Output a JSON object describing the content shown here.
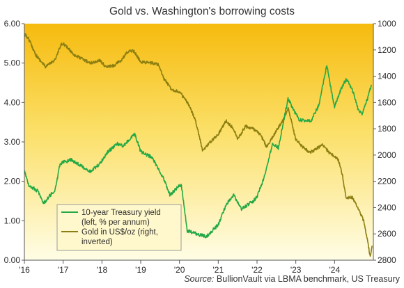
{
  "chart_data": {
    "type": "line",
    "title": "Gold vs. Washington's  borrowing costs",
    "source_label": "Source:",
    "source_text": "BullionVault via LBMA benchmark, US Treasury",
    "x_axis": {
      "range": [
        2016.0,
        2025.0
      ],
      "tick_values": [
        2016,
        2017,
        2018,
        2019,
        2020,
        2021,
        2022,
        2023,
        2024
      ],
      "tick_labels": [
        "'16",
        "'17",
        "'18",
        "'19",
        "'20",
        "'21",
        "'22",
        "'23",
        "'24"
      ]
    },
    "y_left": {
      "range": [
        0,
        6
      ],
      "ticks": [
        "0.00",
        "1.00",
        "2.00",
        "3.00",
        "4.00",
        "5.00",
        "6.00"
      ]
    },
    "y_right": {
      "range": [
        1000,
        2800
      ],
      "inverted": true,
      "ticks": [
        "1000",
        "1200",
        "1400",
        "1600",
        "1800",
        "2000",
        "2200",
        "2400",
        "2600",
        "2800"
      ]
    },
    "grid": false,
    "legend_position": "bottom-left",
    "series": [
      {
        "name": "10-year Treasury yield",
        "legend_lines": [
          "10-year Treasury yield",
          "(left, % per annum)"
        ],
        "axis": "left",
        "color": "#22a845",
        "x": [
          2016.0,
          2016.12,
          2016.35,
          2016.5,
          2016.8,
          2016.92,
          2017.2,
          2017.7,
          2017.95,
          2018.15,
          2018.4,
          2018.55,
          2018.85,
          2019.0,
          2019.3,
          2019.6,
          2019.75,
          2019.95,
          2020.05,
          2020.2,
          2020.5,
          2020.7,
          2021.0,
          2021.2,
          2021.4,
          2021.6,
          2021.9,
          2022.0,
          2022.2,
          2022.4,
          2022.55,
          2022.8,
          2022.95,
          2023.1,
          2023.4,
          2023.6,
          2023.8,
          2023.95,
          2024.0,
          2024.15,
          2024.3,
          2024.45,
          2024.6,
          2024.7,
          2024.85,
          2024.95
        ],
        "y": [
          2.25,
          1.9,
          1.75,
          1.45,
          1.8,
          2.45,
          2.55,
          2.25,
          2.45,
          2.75,
          2.95,
          2.9,
          3.2,
          2.75,
          2.6,
          2.05,
          1.65,
          1.85,
          1.9,
          0.75,
          0.65,
          0.6,
          0.9,
          1.4,
          1.65,
          1.3,
          1.5,
          1.6,
          2.15,
          2.95,
          2.85,
          4.1,
          3.8,
          3.55,
          3.55,
          3.95,
          4.95,
          4.1,
          3.9,
          4.3,
          4.6,
          4.35,
          3.85,
          3.7,
          4.1,
          4.45
        ]
      },
      {
        "name": "Gold in US$/oz",
        "legend_lines": [
          "Gold in US$/oz (right,",
          "inverted)"
        ],
        "axis": "right",
        "color": "#8c7e10",
        "x": [
          2016.0,
          2016.1,
          2016.3,
          2016.55,
          2016.8,
          2016.95,
          2017.0,
          2017.3,
          2017.7,
          2017.95,
          2018.1,
          2018.3,
          2018.5,
          2018.65,
          2018.8,
          2019.0,
          2019.3,
          2019.45,
          2019.6,
          2019.8,
          2020.0,
          2020.2,
          2020.4,
          2020.6,
          2020.7,
          2020.9,
          2021.0,
          2021.2,
          2021.4,
          2021.5,
          2021.7,
          2021.9,
          2022.1,
          2022.25,
          2022.45,
          2022.7,
          2022.8,
          2023.0,
          2023.15,
          2023.35,
          2023.5,
          2023.7,
          2023.85,
          2024.0,
          2024.1,
          2024.2,
          2024.3,
          2024.45,
          2024.6,
          2024.75,
          2024.85,
          2024.92,
          2024.97
        ],
        "y": [
          1080,
          1110,
          1240,
          1330,
          1270,
          1160,
          1150,
          1240,
          1300,
          1280,
          1330,
          1320,
          1280,
          1220,
          1200,
          1290,
          1300,
          1310,
          1420,
          1500,
          1520,
          1600,
          1720,
          1970,
          1930,
          1870,
          1840,
          1740,
          1800,
          1880,
          1780,
          1800,
          1850,
          1940,
          1840,
          1720,
          1640,
          1880,
          1930,
          1980,
          1960,
          1920,
          1980,
          2010,
          2040,
          2150,
          2330,
          2320,
          2400,
          2500,
          2650,
          2780,
          2690
        ]
      }
    ]
  }
}
